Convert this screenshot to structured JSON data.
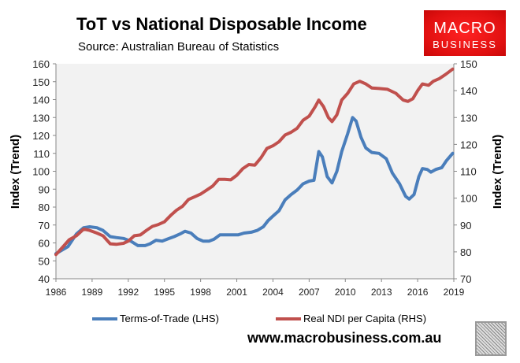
{
  "chart_data": {
    "type": "line",
    "title": "ToT vs National Disposable Income",
    "subtitle": "Source: Australian Bureau of Statistics",
    "ylabel_left": "Index (Trend)",
    "ylabel_right": "Index (Trend)",
    "xlim": [
      1986,
      2019
    ],
    "ylim_left": [
      40,
      160
    ],
    "ylim_right": [
      70,
      150
    ],
    "x_ticks": [
      "1986",
      "1989",
      "1992",
      "1995",
      "1998",
      "2001",
      "2004",
      "2007",
      "2010",
      "2013",
      "2016",
      "2019"
    ],
    "y_ticks_left": [
      "40",
      "50",
      "60",
      "70",
      "80",
      "90",
      "100",
      "110",
      "120",
      "130",
      "140",
      "150",
      "160"
    ],
    "y_ticks_right": [
      "70",
      "80",
      "90",
      "100",
      "110",
      "120",
      "130",
      "140",
      "150"
    ],
    "grid": false,
    "legend_position": "bottom",
    "series": [
      {
        "name": "Terms-of-Trade (LHS)",
        "axis": "left",
        "color": "#4a7ebb",
        "points": [
          [
            1986,
            54
          ],
          [
            1987,
            58
          ],
          [
            1987.7,
            65
          ],
          [
            1988.3,
            68.5
          ],
          [
            1988.8,
            69
          ],
          [
            1989.4,
            68.5
          ],
          [
            1989.9,
            67
          ],
          [
            1990.5,
            63.5
          ],
          [
            1991,
            63
          ],
          [
            1991.6,
            62.5
          ],
          [
            1992.2,
            61
          ],
          [
            1992.8,
            58.5
          ],
          [
            1993.4,
            58.5
          ],
          [
            1993.8,
            59.5
          ],
          [
            1994.3,
            61.5
          ],
          [
            1994.8,
            61
          ],
          [
            1995.4,
            62.5
          ],
          [
            1995.8,
            63.5
          ],
          [
            1996.3,
            65
          ],
          [
            1996.7,
            66.5
          ],
          [
            1997.2,
            65.5
          ],
          [
            1997.7,
            62.5
          ],
          [
            1998.2,
            61
          ],
          [
            1998.7,
            61
          ],
          [
            1999.1,
            62
          ],
          [
            1999.6,
            64.5
          ],
          [
            2000.1,
            64.5
          ],
          [
            2000.6,
            64.5
          ],
          [
            2001.1,
            64.5
          ],
          [
            2001.6,
            65.5
          ],
          [
            2002.2,
            66
          ],
          [
            2002.7,
            67
          ],
          [
            2003.2,
            69
          ],
          [
            2003.6,
            72.5
          ],
          [
            2004,
            75
          ],
          [
            2004.5,
            78
          ],
          [
            2005,
            84
          ],
          [
            2005.5,
            87
          ],
          [
            2006,
            89.5
          ],
          [
            2006.5,
            93
          ],
          [
            2007,
            94.5
          ],
          [
            2007.4,
            95
          ],
          [
            2007.8,
            111
          ],
          [
            2008.1,
            108
          ],
          [
            2008.5,
            97
          ],
          [
            2008.9,
            93.5
          ],
          [
            2009.3,
            100
          ],
          [
            2009.7,
            111
          ],
          [
            2010.2,
            121
          ],
          [
            2010.6,
            130
          ],
          [
            2010.9,
            128
          ],
          [
            2011.3,
            119
          ],
          [
            2011.7,
            113
          ],
          [
            2012.2,
            110.5
          ],
          [
            2012.8,
            110
          ],
          [
            2013.4,
            107
          ],
          [
            2013.9,
            99
          ],
          [
            2014.5,
            93
          ],
          [
            2015,
            86
          ],
          [
            2015.3,
            84.5
          ],
          [
            2015.7,
            87
          ],
          [
            2016.1,
            97
          ],
          [
            2016.4,
            101.5
          ],
          [
            2016.8,
            101
          ],
          [
            2017.1,
            99.5
          ],
          [
            2017.5,
            101
          ],
          [
            2018,
            102
          ],
          [
            2018.4,
            106
          ],
          [
            2018.9,
            110
          ]
        ]
      },
      {
        "name": "Real NDI per Capita (RHS)",
        "axis": "right",
        "color": "#c0504d",
        "points": [
          [
            1986,
            79
          ],
          [
            1986.6,
            82
          ],
          [
            1987.1,
            84.5
          ],
          [
            1987.7,
            86
          ],
          [
            1988.3,
            88.5
          ],
          [
            1988.8,
            88
          ],
          [
            1989.4,
            87
          ],
          [
            1989.9,
            86
          ],
          [
            1990.5,
            83
          ],
          [
            1991,
            82.8
          ],
          [
            1991.6,
            83.2
          ],
          [
            1992,
            84
          ],
          [
            1992.5,
            86
          ],
          [
            1993,
            86.3
          ],
          [
            1993.5,
            88
          ],
          [
            1994,
            89.5
          ],
          [
            1994.5,
            90.2
          ],
          [
            1995,
            91.2
          ],
          [
            1995.5,
            93.5
          ],
          [
            1996,
            95.5
          ],
          [
            1996.5,
            97
          ],
          [
            1997,
            99.5
          ],
          [
            1997.5,
            100.5
          ],
          [
            1998,
            101.5
          ],
          [
            1998.5,
            103
          ],
          [
            1999,
            104.5
          ],
          [
            1999.5,
            107
          ],
          [
            2000,
            107
          ],
          [
            2000.5,
            106.8
          ],
          [
            2001,
            108.5
          ],
          [
            2001.5,
            111
          ],
          [
            2002,
            112.5
          ],
          [
            2002.5,
            112.3
          ],
          [
            2003,
            115
          ],
          [
            2003.5,
            118.5
          ],
          [
            2004,
            119.5
          ],
          [
            2004.5,
            121
          ],
          [
            2005,
            123.5
          ],
          [
            2005.5,
            124.5
          ],
          [
            2006,
            126
          ],
          [
            2006.5,
            129
          ],
          [
            2007,
            130.5
          ],
          [
            2007.5,
            134
          ],
          [
            2007.8,
            136.5
          ],
          [
            2008.2,
            134
          ],
          [
            2008.6,
            130
          ],
          [
            2008.9,
            128.5
          ],
          [
            2009.3,
            131
          ],
          [
            2009.7,
            136.5
          ],
          [
            2010.2,
            139
          ],
          [
            2010.7,
            142.5
          ],
          [
            2011.2,
            143.5
          ],
          [
            2011.7,
            142.5
          ],
          [
            2012.2,
            141
          ],
          [
            2012.8,
            140.8
          ],
          [
            2013.5,
            140.5
          ],
          [
            2014.2,
            139
          ],
          [
            2014.8,
            136.5
          ],
          [
            2015.2,
            136
          ],
          [
            2015.6,
            137
          ],
          [
            2016,
            140
          ],
          [
            2016.4,
            142.5
          ],
          [
            2016.9,
            142
          ],
          [
            2017.3,
            143.5
          ],
          [
            2017.8,
            144.5
          ],
          [
            2018.3,
            146
          ],
          [
            2018.9,
            148
          ]
        ]
      }
    ]
  },
  "branding": {
    "logo_line1": "MACRO",
    "logo_line2": "BUSINESS",
    "website": "www.macrobusiness.com.au"
  }
}
